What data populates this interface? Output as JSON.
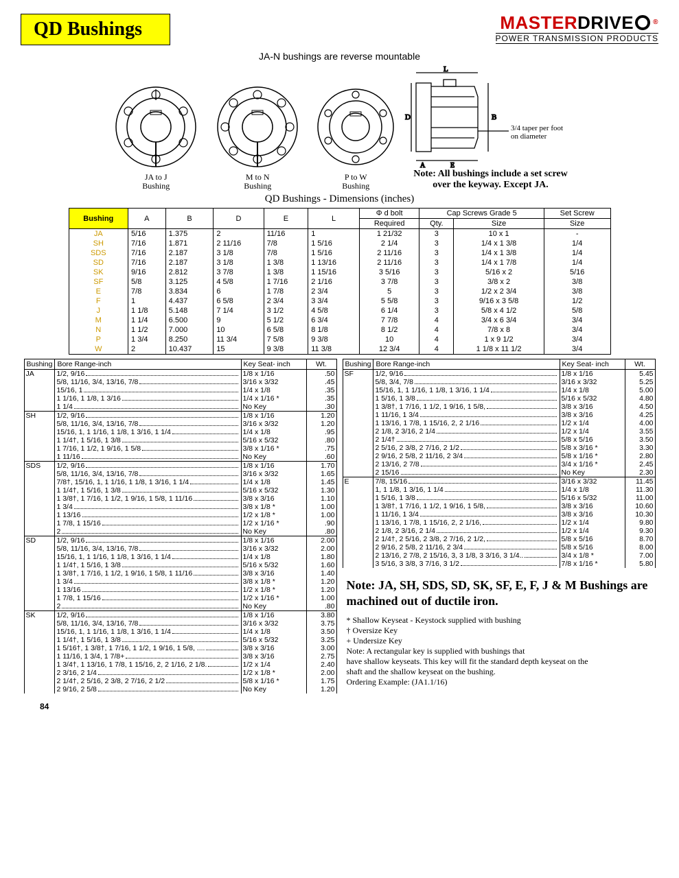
{
  "header": {
    "title": "QD Bushings",
    "brand_a": "MASTER",
    "brand_b": "DRIVE",
    "tagline": "POWER TRANSMISSION PRODUCTS"
  },
  "subtitle": "JA-N bushings are reverse mountable",
  "diagram_labels": {
    "a": "JA to J",
    "a2": "Bushing",
    "b": "M to N",
    "b2": "Bushing",
    "c": "P to W",
    "c2": "Bushing",
    "taper": "3/4 taper per foot",
    "taper2": "on diameter",
    "note1": "Note: All bushings include a set screw",
    "note2": "over the keyway.  Except JA."
  },
  "dim_title": "QD Bushings - Dimensions (inches)",
  "main_headers": {
    "bushing": "Bushing",
    "a": "A",
    "b": "B",
    "d": "D",
    "e": "E",
    "l": "L",
    "bolt_top": "Φ d bolt",
    "bolt": "Required",
    "caps": "Cap Screws Grade 5",
    "qty": "Qty.",
    "size": "Size",
    "setscrew": "Set Screw",
    "sssize": "Size"
  },
  "main_rows": [
    {
      "b": "JA",
      "A": "5/16",
      "B": "1.375",
      "D": "2",
      "E": "11/16",
      "L": "1",
      "req": "1 21/32",
      "qty": "3",
      "sz": "10 x 1",
      "ss": "-"
    },
    {
      "b": "SH",
      "A": "7/16",
      "B": "1.871",
      "D": "2 11/16",
      "E": "7/8",
      "L": "1 5/16",
      "req": "2 1/4",
      "qty": "3",
      "sz": "1/4 x 1 3/8",
      "ss": "1/4"
    },
    {
      "b": "SDS",
      "A": "7/16",
      "B": "2.187",
      "D": "3 1/8",
      "E": "7/8",
      "L": "1 5/16",
      "req": "2 11/16",
      "qty": "3",
      "sz": "1/4 x 1 3/8",
      "ss": "1/4"
    },
    {
      "b": "SD",
      "A": "7/16",
      "B": "2.187",
      "D": "3 1/8",
      "E": "1 3/8",
      "L": "1 13/16",
      "req": "2 11/16",
      "qty": "3",
      "sz": "1/4 x 1 7/8",
      "ss": "1/4"
    },
    {
      "b": "SK",
      "A": "9/16",
      "B": "2.812",
      "D": "3 7/8",
      "E": "1 3/8",
      "L": "1 15/16",
      "req": "3 5/16",
      "qty": "3",
      "sz": "5/16 x 2",
      "ss": "5/16"
    },
    {
      "b": "SF",
      "A": "5/8",
      "B": "3.125",
      "D": "4 5/8",
      "E": "1 7/16",
      "L": "2 1/16",
      "req": "3 7/8",
      "qty": "3",
      "sz": "3/8 x 2",
      "ss": "3/8"
    },
    {
      "b": "E",
      "A": "7/8",
      "B": "3.834",
      "D": "6",
      "E": "1 7/8",
      "L": "2 3/4",
      "req": "5",
      "qty": "3",
      "sz": "1/2 x 2 3/4",
      "ss": "3/8"
    },
    {
      "b": "F",
      "A": "1",
      "B": "4.437",
      "D": "6 5/8",
      "E": "2 3/4",
      "L": "3 3/4",
      "req": "5 5/8",
      "qty": "3",
      "sz": "9/16 x 3 5/8",
      "ss": "1/2"
    },
    {
      "b": "J",
      "A": "1 1/8",
      "B": "5.148",
      "D": "7 1/4",
      "E": "3 1/2",
      "L": "4 5/8",
      "req": "6 1/4",
      "qty": "3",
      "sz": "5/8 x 4 1/2",
      "ss": "5/8"
    },
    {
      "b": "M",
      "A": "1 1/4",
      "B": "6.500",
      "D": "9",
      "E": "5 1/2",
      "L": "6 3/4",
      "req": "7 7/8",
      "qty": "4",
      "sz": "3/4 x 6 3/4",
      "ss": "3/4"
    },
    {
      "b": "N",
      "A": "1 1/2",
      "B": "7.000",
      "D": "10",
      "E": "6 5/8",
      "L": "8 1/8",
      "req": "8 1/2",
      "qty": "4",
      "sz": "7/8 x 8",
      "ss": "3/4"
    },
    {
      "b": "P",
      "A": "1 3/4",
      "B": "8.250",
      "D": "11 3/4",
      "E": "7 5/8",
      "L": "9 3/8",
      "req": "10",
      "qty": "4",
      "sz": "1 x 9 1/2",
      "ss": "3/4"
    },
    {
      "b": "W",
      "A": "2",
      "B": "10.437",
      "D": "15",
      "E": "9 3/8",
      "L": "11 3/8",
      "req": "12 3/4",
      "qty": "4",
      "sz": "1 1/8 x 11 1/2",
      "ss": "3/4"
    }
  ],
  "bore_headers": {
    "bushing": "Bushing",
    "range": "Bore Range-inch",
    "ks": "Key Seat- inch",
    "wt": "Wt."
  },
  "bore_left": [
    {
      "g": "JA",
      "rows": [
        {
          "r": "1/2, 9/16",
          "ks": "1/8  x  1/16",
          "wt": ".50"
        },
        {
          "r": "5/8, 11/16, 3/4, 13/16, 7/8",
          "ks": "3/16  x  3/32",
          "wt": ".45"
        },
        {
          "r": "15/16, 1",
          "ks": "1/4  x  1/8",
          "wt": ".35"
        },
        {
          "r": "1 1/16, 1 1/8, 1 3/16",
          "ks": "1/4  x  1/16 *",
          "wt": ".35"
        },
        {
          "r": "1 1/4",
          "ks": "No Key",
          "wt": ".30"
        }
      ]
    },
    {
      "g": "SH",
      "rows": [
        {
          "r": "1/2, 9/16",
          "ks": "1/8  x  1/16",
          "wt": "1.20"
        },
        {
          "r": "5/8, 11/16, 3/4, 13/16, 7/8",
          "ks": "3/16  x  3/32",
          "wt": "1.20"
        },
        {
          "r": "15/16, 1, 1 1/16, 1 1/8, 1 3/16, 1 1/4",
          "ks": "1/4  x  1/8",
          "wt": ".95"
        },
        {
          "r": "1 1/4†, 1 5/16, 1 3/8",
          "ks": "5/16  x  5/32",
          "wt": ".80"
        },
        {
          "r": "1 7/16, 1 1/2, 1 9/16, 1 5/8",
          "ks": "3/8  x  1/16 *",
          "wt": ".75"
        },
        {
          "r": "1 11/16",
          "ks": "No Key",
          "wt": ".60"
        }
      ]
    },
    {
      "g": "SDS",
      "rows": [
        {
          "r": "1/2, 9/16",
          "ks": "1/8  x  1/16",
          "wt": "1.70"
        },
        {
          "r": "5/8, 11/16, 3/4, 13/16, 7/8",
          "ks": "3/16  x  3/32",
          "wt": "1.65"
        },
        {
          "r": "7/8†, 15/16, 1, 1 1/16, 1 1/8, 1 3/16, 1 1/4",
          "ks": "1/4  x  1/8",
          "wt": "1.45"
        },
        {
          "r": "1 1/4†, 1 5/16, 1 3/8",
          "ks": "5/16  x  5/32",
          "wt": "1.30"
        },
        {
          "r": "1 3/8†, 1 7/16, 1 1/2, 1 9/16, 1 5/8, 1 11/16",
          "ks": "3/8  x  3/16",
          "wt": "1.10"
        },
        {
          "r": "1 3/4",
          "ks": "3/8  x  1/8  *",
          "wt": "1.00"
        },
        {
          "r": "1 13/16",
          "ks": "1/2  x  1/8  *",
          "wt": "1.00"
        },
        {
          "r": "1 7/8, 1 15/16",
          "ks": "1/2  x  1/16 *",
          "wt": ".90"
        },
        {
          "r": "2",
          "ks": "No Key",
          "wt": ".80"
        }
      ]
    },
    {
      "g": "SD",
      "rows": [
        {
          "r": "1/2, 9/16",
          "ks": "1/8  x  1/16",
          "wt": "2.00"
        },
        {
          "r": "5/8, 11/16, 3/4, 13/16, 7/8",
          "ks": "3/16  x  3/32",
          "wt": "2.00"
        },
        {
          "r": "15/16, 1, 1 1/16, 1 1/8, 1 3/16, 1 1/4",
          "ks": "1/4  x  1/8",
          "wt": "1.80"
        },
        {
          "r": "1 1/4†, 1 5/16, 1 3/8",
          "ks": "5/16  x  5/32",
          "wt": "1.60"
        },
        {
          "r": "1 3/8†, 1 7/16, 1 1/2, 1 9/16, 1 5/8, 1 11/16",
          "ks": "3/8  x  3/16",
          "wt": "1.40"
        },
        {
          "r": "1 3/4",
          "ks": "3/8  x  1/8  *",
          "wt": "1.20"
        },
        {
          "r": "1 13/16",
          "ks": "1/2  x  1/8  *",
          "wt": "1.20"
        },
        {
          "r": "1 7/8, 1 15/16",
          "ks": "1/2  x  1/16 *",
          "wt": "1.00"
        },
        {
          "r": "2",
          "ks": "No Key",
          "wt": ".80"
        }
      ]
    },
    {
      "g": "SK",
      "rows": [
        {
          "r": "1/2, 9/16",
          "ks": "1/8  x  1/16",
          "wt": "3.80"
        },
        {
          "r": "5/8, 11/16, 3/4, 13/16, 7/8",
          "ks": "3/16  x  3/32",
          "wt": "3.75"
        },
        {
          "r": "15/16, 1, 1 1/16, 1 1/8, 1 3/16, 1 1/4",
          "ks": "1/4  x  1/8",
          "wt": "3.50"
        },
        {
          "r": "1 1/4†, 1 5/16, 1 3/8",
          "ks": "5/16  x  5/32",
          "wt": "3.25"
        },
        {
          "r": "1 5/16†, 1 3/8†, 1 7/16, 1 1/2, 1 9/16, 1 5/8, ....",
          "ks": "3/8  x  3/16",
          "wt": "3.00"
        },
        {
          "r": "1 11/16, 1 3/4, 1 7/8+",
          "ks": "3/8  x  3/16",
          "wt": "2.75"
        },
        {
          "r": "1 3/4†, 1 13/16, 1 7/8, 1 15/16, 2, 2 1/16, 2 1/8.",
          "ks": "1/2  x  1/4",
          "wt": "2.40"
        },
        {
          "r": "2 3/16, 2 1/4",
          "ks": "1/2  x  1/8  *",
          "wt": "2.00"
        },
        {
          "r": "2 1/4†, 2 5/16, 2 3/8, 2 7/16, 2 1/2",
          "ks": "5/8  x  1/16 *",
          "wt": "1.75"
        },
        {
          "r": "2 9/16, 2 5/8",
          "ks": "No Key",
          "wt": "1.20"
        }
      ]
    }
  ],
  "bore_right": [
    {
      "g": "SF",
      "rows": [
        {
          "r": "1/2, 9/16",
          "ks": "1/8  x  1/16",
          "wt": "5.45"
        },
        {
          "r": "5/8, 3/4, 7/8",
          "ks": "3/16  x  3/32",
          "wt": "5.25"
        },
        {
          "r": "15/16, 1, 1 1/16, 1 1/8, 1 3/16, 1 1/4",
          "ks": "1/4  x  1/8",
          "wt": "5.00"
        },
        {
          "r": "1 5/16, 1 3/8",
          "ks": "5/16  x  5/32",
          "wt": "4.80"
        },
        {
          "r": "1 3/8†, 1 7/16, 1 1/2, 1 9/16, 1 5/8,",
          "ks": "3/8  x  3/16",
          "wt": "4.50"
        },
        {
          "r": "1 11/16, 1 3/4",
          "ks": "3/8  x  3/16",
          "wt": "4.25"
        },
        {
          "r": "1 13/16, 1 7/8, 1 15/16, 2, 2 1/16",
          "ks": "1/2  x  1/4",
          "wt": "4.00"
        },
        {
          "r": "2 1/8, 2 3/16, 2 1/4",
          "ks": "1/2  x  1/4",
          "wt": "3.55"
        },
        {
          "r": "2 1/4†",
          "ks": "5/8  x  5/16",
          "wt": "3.50"
        },
        {
          "r": "2 5/16, 2 3/8, 2 7/16, 2 1/2",
          "ks": "5/8  x  3/16 *",
          "wt": "3.30"
        },
        {
          "r": "2 9/16, 2 5/8, 2 11/16, 2 3/4",
          "ks": "5/8  x  1/16 *",
          "wt": "2.80"
        },
        {
          "r": "2 13/16, 2 7/8",
          "ks": "3/4  x  1/16 *",
          "wt": "2.45"
        },
        {
          "r": "2 15/16",
          "ks": "No Key",
          "wt": "2.30"
        }
      ]
    },
    {
      "g": "E",
      "rows": [
        {
          "r": "7/8, 15/16",
          "ks": "3/16  x  3/32",
          "wt": "11.45"
        },
        {
          "r": "1, 1 1/8, 1 3/16, 1 1/4",
          "ks": "1/4  x  1/8",
          "wt": "11.30"
        },
        {
          "r": "1 5/16, 1 3/8",
          "ks": "5/16  x  5/32",
          "wt": "11.00"
        },
        {
          "r": "1 3/8†, 1 7/16, 1 1/2, 1 9/16, 1 5/8,",
          "ks": "3/8  x  3/16",
          "wt": "10.60"
        },
        {
          "r": "1 11/16, 1 3/4",
          "ks": "3/8  x  3/16",
          "wt": "10.30"
        },
        {
          "r": "1 13/16, 1 7/8, 1 15/16, 2, 2 1/16,",
          "ks": "1/2  x  1/4",
          "wt": "9.80"
        },
        {
          "r": "2 1/8, 2 3/16, 2 1/4",
          "ks": "1/2  x  1/4",
          "wt": "9.30"
        },
        {
          "r": "2 1/4†, 2 5/16, 2 3/8, 2 7/16, 2 1/2,",
          "ks": "5/8  x  5/16",
          "wt": "8.70"
        },
        {
          "r": "2 9/16, 2 5/8, 2 11/16, 2 3/4",
          "ks": "5/8  x  5/16",
          "wt": "8.00"
        },
        {
          "r": "2 13/16, 2 7/8, 2 15/16, 3, 3 1/8, 3 3/16, 3 1/4..",
          "ks": "3/4  x  1/8  *",
          "wt": "7.00"
        },
        {
          "r": "3 5/16, 3 3/8, 3 7/16, 3 1/2",
          "ks": "7/8  x  1/16 *",
          "wt": "5.80"
        }
      ]
    }
  ],
  "bottom_note": "Note: JA, SH, SDS, SD, SK, SF, E, F, J & M Bushings are machined out of ductile iron.",
  "footnotes": [
    "*  Shallow Keyseat - Keystock supplied with bushing",
    "†  Oversize Key",
    "+ Undersize Key",
    "Note:     A rectangular key is supplied with bushings that",
    "have shallow keyseats.  This key will fit the standard depth keyseat on the",
    "shaft and the shallow keyseat on  the bushing.",
    "Ordering Example:   (JA1.1/16)"
  ],
  "page_number": "84",
  "colors": {
    "yellow": "#ffff00",
    "red": "#cc0000",
    "gold": "#aa8800"
  }
}
